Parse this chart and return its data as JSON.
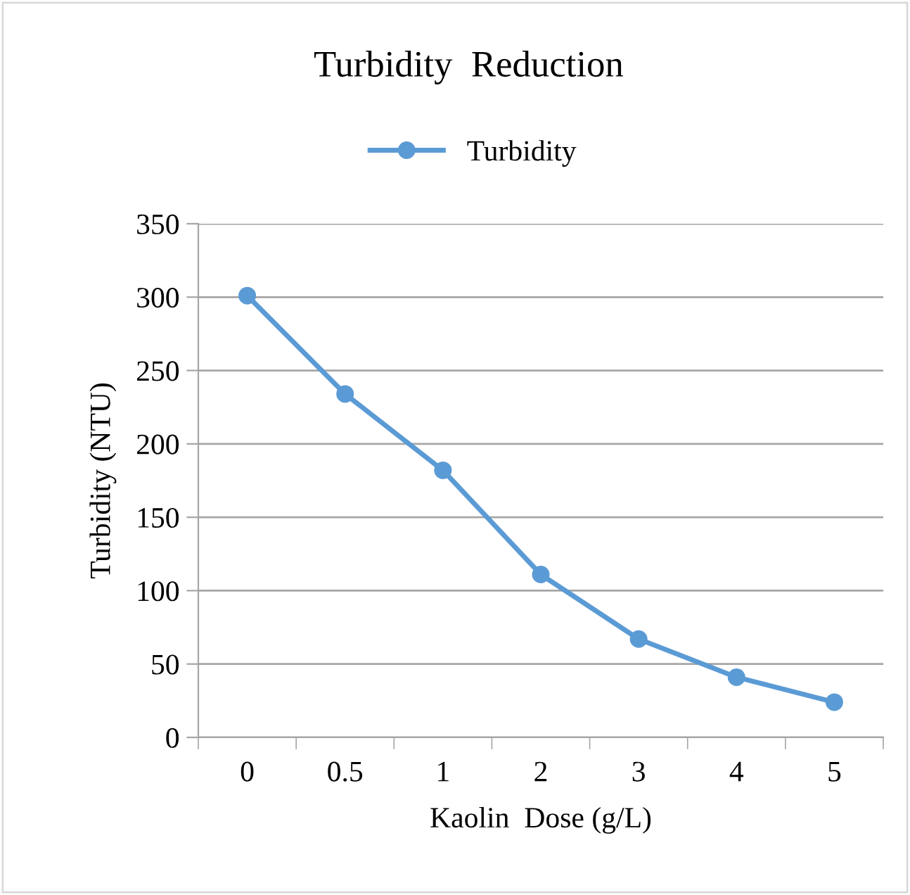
{
  "chart_data": {
    "type": "line",
    "title": "Turbidity  Reduction",
    "xlabel": "Kaolin  Dose (g/L)",
    "ylabel": "Turbidity (NTU)",
    "categories": [
      "0",
      "0.5",
      "1",
      "2",
      "3",
      "4",
      "5"
    ],
    "series": [
      {
        "name": "Turbidity",
        "color": "#5b9bd5",
        "values": [
          301,
          234,
          182,
          111,
          67,
          41,
          24
        ]
      }
    ],
    "ylim": [
      0,
      350
    ],
    "yticks": [
      0,
      50,
      100,
      150,
      200,
      250,
      300,
      350
    ],
    "grid": "y",
    "legend": "top",
    "marker": "circle",
    "line_style": "solid"
  }
}
